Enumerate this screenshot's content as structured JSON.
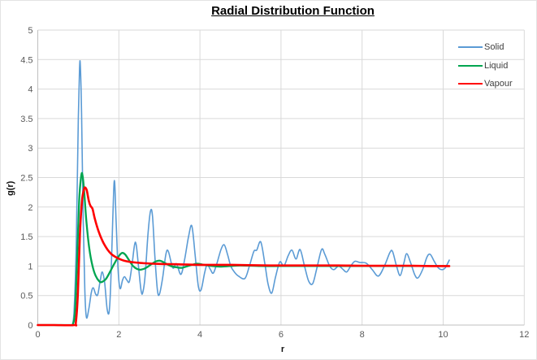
{
  "title": "Radial Distribution Function",
  "axes": {
    "x": {
      "label": "r",
      "min": 0,
      "max": 12,
      "tick_step": 2,
      "ticks": [
        "0",
        "2",
        "4",
        "6",
        "8",
        "10",
        "12"
      ]
    },
    "y": {
      "label": "g(r)",
      "min": 0,
      "max": 5,
      "tick_step": 0.5,
      "ticks": [
        "0",
        "0.5",
        "1",
        "1.5",
        "2",
        "2.5",
        "3",
        "3.5",
        "4",
        "4.5",
        "5"
      ]
    }
  },
  "legend": {
    "position": "top-right",
    "items": [
      {
        "label": "Solid",
        "color": "#5B9BD5",
        "swatch_thickness": 2
      },
      {
        "label": "Liquid",
        "color": "#00A550",
        "swatch_thickness": 2.4
      },
      {
        "label": "Vapour",
        "color": "#FF0000",
        "swatch_thickness": 2.6
      }
    ]
  },
  "colors": {
    "gridline": "#D9D9D9",
    "axis_line": "#BFBFBF",
    "tick_label": "#595959",
    "title": "#000000",
    "background": "#FFFFFF"
  },
  "chart_data": {
    "type": "line",
    "title": "Radial Distribution Function",
    "xlabel": "r",
    "ylabel": "g(r)",
    "xlim": [
      0,
      12
    ],
    "ylim": [
      0,
      5
    ],
    "grid": true,
    "legend_position": "top-right",
    "series": [
      {
        "name": "Solid",
        "color": "#5B9BD5",
        "width": 1.6,
        "points": [
          [
            0,
            0
          ],
          [
            0.3,
            0
          ],
          [
            0.6,
            0
          ],
          [
            0.8,
            0
          ],
          [
            0.86,
            0.02
          ],
          [
            0.9,
            0.3
          ],
          [
            0.95,
            1.4
          ],
          [
            1.0,
            3.5
          ],
          [
            1.03,
            4.35
          ],
          [
            1.05,
            4.4
          ],
          [
            1.08,
            3.6
          ],
          [
            1.12,
            1.8
          ],
          [
            1.16,
            0.6
          ],
          [
            1.2,
            0.13
          ],
          [
            1.26,
            0.28
          ],
          [
            1.32,
            0.55
          ],
          [
            1.37,
            0.63
          ],
          [
            1.43,
            0.52
          ],
          [
            1.48,
            0.52
          ],
          [
            1.54,
            0.75
          ],
          [
            1.59,
            0.9
          ],
          [
            1.65,
            0.72
          ],
          [
            1.71,
            0.28
          ],
          [
            1.76,
            0.22
          ],
          [
            1.8,
            0.7
          ],
          [
            1.85,
            1.8
          ],
          [
            1.89,
            2.45
          ],
          [
            1.93,
            1.8
          ],
          [
            1.98,
            0.95
          ],
          [
            2.03,
            0.62
          ],
          [
            2.09,
            0.76
          ],
          [
            2.14,
            0.82
          ],
          [
            2.2,
            0.76
          ],
          [
            2.26,
            0.74
          ],
          [
            2.33,
            1.05
          ],
          [
            2.39,
            1.37
          ],
          [
            2.43,
            1.35
          ],
          [
            2.49,
            0.95
          ],
          [
            2.55,
            0.58
          ],
          [
            2.59,
            0.55
          ],
          [
            2.65,
            0.85
          ],
          [
            2.72,
            1.55
          ],
          [
            2.78,
            1.93
          ],
          [
            2.83,
            1.85
          ],
          [
            2.89,
            1.15
          ],
          [
            2.95,
            0.6
          ],
          [
            3.0,
            0.52
          ],
          [
            3.08,
            0.8
          ],
          [
            3.16,
            1.2
          ],
          [
            3.22,
            1.25
          ],
          [
            3.33,
            0.97
          ],
          [
            3.42,
            1.04
          ],
          [
            3.53,
            0.86
          ],
          [
            3.62,
            1.1
          ],
          [
            3.72,
            1.5
          ],
          [
            3.8,
            1.68
          ],
          [
            3.88,
            1.2
          ],
          [
            3.96,
            0.66
          ],
          [
            4.03,
            0.6
          ],
          [
            4.12,
            0.9
          ],
          [
            4.18,
            1.02
          ],
          [
            4.26,
            0.94
          ],
          [
            4.33,
            0.88
          ],
          [
            4.42,
            1.05
          ],
          [
            4.52,
            1.28
          ],
          [
            4.6,
            1.36
          ],
          [
            4.68,
            1.2
          ],
          [
            4.76,
            1.0
          ],
          [
            4.85,
            0.9
          ],
          [
            4.95,
            0.83
          ],
          [
            5.11,
            0.79
          ],
          [
            5.22,
            1.0
          ],
          [
            5.33,
            1.25
          ],
          [
            5.4,
            1.27
          ],
          [
            5.5,
            1.41
          ],
          [
            5.6,
            1.05
          ],
          [
            5.68,
            0.7
          ],
          [
            5.77,
            0.54
          ],
          [
            5.86,
            0.8
          ],
          [
            5.97,
            1.07
          ],
          [
            6.07,
            1.0
          ],
          [
            6.18,
            1.18
          ],
          [
            6.27,
            1.27
          ],
          [
            6.37,
            1.12
          ],
          [
            6.47,
            1.28
          ],
          [
            6.58,
            1.0
          ],
          [
            6.68,
            0.75
          ],
          [
            6.78,
            0.7
          ],
          [
            6.88,
            0.95
          ],
          [
            7.0,
            1.28
          ],
          [
            7.08,
            1.2
          ],
          [
            7.2,
            1.0
          ],
          [
            7.3,
            0.94
          ],
          [
            7.42,
            1.0
          ],
          [
            7.52,
            0.95
          ],
          [
            7.62,
            0.9
          ],
          [
            7.72,
            1.0
          ],
          [
            7.82,
            1.08
          ],
          [
            7.95,
            1.06
          ],
          [
            8.1,
            1.05
          ],
          [
            8.25,
            0.94
          ],
          [
            8.4,
            0.83
          ],
          [
            8.55,
            1.0
          ],
          [
            8.68,
            1.22
          ],
          [
            8.75,
            1.25
          ],
          [
            8.85,
            1.0
          ],
          [
            8.94,
            0.84
          ],
          [
            9.03,
            1.05
          ],
          [
            9.1,
            1.21
          ],
          [
            9.2,
            1.05
          ],
          [
            9.3,
            0.85
          ],
          [
            9.38,
            0.8
          ],
          [
            9.5,
            0.95
          ],
          [
            9.6,
            1.15
          ],
          [
            9.68,
            1.2
          ],
          [
            9.78,
            1.08
          ],
          [
            9.88,
            0.97
          ],
          [
            9.97,
            0.94
          ],
          [
            10.05,
            0.97
          ],
          [
            10.15,
            1.1
          ]
        ]
      },
      {
        "name": "Liquid",
        "color": "#00A550",
        "width": 2.3,
        "points": [
          [
            0,
            0
          ],
          [
            0.4,
            0
          ],
          [
            0.8,
            0
          ],
          [
            0.87,
            0.02
          ],
          [
            0.92,
            0.25
          ],
          [
            0.97,
            1.1
          ],
          [
            1.02,
            2.1
          ],
          [
            1.07,
            2.52
          ],
          [
            1.1,
            2.55
          ],
          [
            1.14,
            2.3
          ],
          [
            1.2,
            1.75
          ],
          [
            1.27,
            1.3
          ],
          [
            1.35,
            1.0
          ],
          [
            1.43,
            0.83
          ],
          [
            1.52,
            0.74
          ],
          [
            1.58,
            0.73
          ],
          [
            1.68,
            0.78
          ],
          [
            1.78,
            0.9
          ],
          [
            1.88,
            1.03
          ],
          [
            1.98,
            1.15
          ],
          [
            2.07,
            1.22
          ],
          [
            2.15,
            1.2
          ],
          [
            2.25,
            1.1
          ],
          [
            2.35,
            1.0
          ],
          [
            2.45,
            0.95
          ],
          [
            2.55,
            0.94
          ],
          [
            2.67,
            0.97
          ],
          [
            2.8,
            1.03
          ],
          [
            2.92,
            1.08
          ],
          [
            3.02,
            1.09
          ],
          [
            3.14,
            1.05
          ],
          [
            3.28,
            1.0
          ],
          [
            3.42,
            0.98
          ],
          [
            3.55,
            0.97
          ],
          [
            3.7,
            1.0
          ],
          [
            3.85,
            1.03
          ],
          [
            3.95,
            1.04
          ],
          [
            4.1,
            1.02
          ],
          [
            4.3,
            1.0
          ],
          [
            4.5,
            0.99
          ],
          [
            4.75,
            1.0
          ],
          [
            5.0,
            1.01
          ],
          [
            5.5,
            1.0
          ],
          [
            6.0,
            1.0
          ],
          [
            6.5,
            1.0
          ],
          [
            7.0,
            1.0
          ],
          [
            7.5,
            1.0
          ],
          [
            8.0,
            1.0
          ],
          [
            8.5,
            1.0
          ],
          [
            9.0,
            1.0
          ],
          [
            9.5,
            1.0
          ],
          [
            10.1,
            1.0
          ]
        ]
      },
      {
        "name": "Vapour",
        "color": "#FF0000",
        "width": 2.6,
        "points": [
          [
            0,
            0
          ],
          [
            0.4,
            0
          ],
          [
            0.9,
            0
          ],
          [
            0.94,
            0.05
          ],
          [
            0.99,
            0.55
          ],
          [
            1.04,
            1.55
          ],
          [
            1.09,
            2.1
          ],
          [
            1.14,
            2.3
          ],
          [
            1.17,
            2.33
          ],
          [
            1.21,
            2.28
          ],
          [
            1.26,
            2.1
          ],
          [
            1.3,
            2.02
          ],
          [
            1.35,
            1.97
          ],
          [
            1.4,
            1.82
          ],
          [
            1.47,
            1.65
          ],
          [
            1.55,
            1.5
          ],
          [
            1.63,
            1.38
          ],
          [
            1.72,
            1.28
          ],
          [
            1.82,
            1.2
          ],
          [
            1.93,
            1.15
          ],
          [
            2.05,
            1.11
          ],
          [
            2.2,
            1.08
          ],
          [
            2.4,
            1.06
          ],
          [
            2.6,
            1.05
          ],
          [
            2.85,
            1.04
          ],
          [
            3.1,
            1.035
          ],
          [
            3.4,
            1.03
          ],
          [
            3.7,
            1.025
          ],
          [
            4.0,
            1.02
          ],
          [
            4.4,
            1.02
          ],
          [
            4.8,
            1.02
          ],
          [
            5.2,
            1.015
          ],
          [
            5.7,
            1.01
          ],
          [
            6.2,
            1.01
          ],
          [
            6.8,
            1.01
          ],
          [
            7.4,
            1.01
          ],
          [
            8.0,
            1.005
          ],
          [
            8.6,
            1.005
          ],
          [
            9.2,
            1.005
          ],
          [
            9.7,
            1.0
          ],
          [
            10.15,
            1.0
          ]
        ]
      }
    ]
  }
}
